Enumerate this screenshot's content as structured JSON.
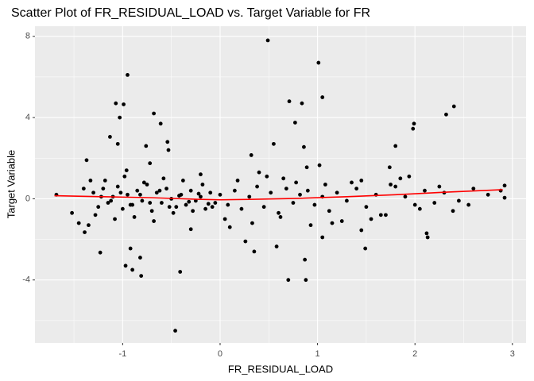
{
  "chart_data": {
    "type": "scatter",
    "title": "Scatter Plot of FR_RESIDUAL_LOAD vs. Target Variable for FR",
    "x_label": "FR_RESIDUAL_LOAD",
    "y_label": "Target Variable",
    "xlim": [
      -1.9,
      3.14
    ],
    "ylim": [
      -7.1,
      8.5
    ],
    "xticks": [
      -1,
      0,
      1,
      2,
      3
    ],
    "yticks": [
      -4,
      0,
      4,
      8
    ],
    "xminor_ticks": [
      -1.5,
      -0.5,
      0.5,
      1.5,
      2.5
    ],
    "yminor_ticks": [
      -6,
      -2,
      2,
      6
    ],
    "grid": true,
    "color": "#000000",
    "x": [
      -0.95,
      -1.07,
      -0.99,
      -1.03,
      -0.68,
      -0.61,
      -1.13,
      -1.05,
      -0.54,
      -0.53,
      -1.37,
      -0.76,
      -0.72,
      -0.96,
      0.49,
      1.01,
      1.05,
      0.71,
      0.84,
      0.77,
      0.55,
      0.32,
      0.86,
      1.02,
      0.89,
      1.74,
      1.8,
      1.99,
      1.98,
      2.32,
      2.4,
      1.94,
      -1.23,
      -0.97,
      -0.9,
      -0.81,
      -0.92,
      -0.82,
      -0.41,
      -0.46,
      -1.39,
      0.26,
      0.35,
      0.58,
      0.7,
      0.88,
      0.87,
      1.05,
      1.49,
      2.12,
      2.13,
      1.45,
      2.39,
      2.55,
      2.88,
      2.92,
      2.92,
      -1.68,
      -1.52,
      -1.45,
      -1.3,
      -1.25,
      -1.2,
      -1.15,
      -1.1,
      -1.05,
      -1.0,
      -0.95,
      -0.9,
      -0.85,
      -0.8,
      -0.75,
      -0.7,
      -0.65,
      -0.6,
      -0.55,
      -0.5,
      -0.45,
      -0.4,
      -0.35,
      -0.3,
      -0.25,
      -0.2,
      -0.15,
      -0.1,
      -0.05,
      -1.28,
      -1.18,
      -1.08,
      -0.98,
      -0.88,
      -0.78,
      -0.68,
      -0.58,
      -0.48,
      -0.38,
      -0.28,
      -0.18,
      -0.08,
      -1.22,
      -1.12,
      -1.02,
      -0.92,
      -0.82,
      -0.72,
      -0.62,
      -0.52,
      -0.42,
      -0.32,
      -0.22,
      -0.12,
      0.0,
      0.08,
      0.15,
      0.22,
      0.3,
      0.38,
      0.45,
      0.52,
      0.6,
      0.68,
      0.75,
      0.82,
      0.9,
      0.97,
      1.05,
      1.12,
      1.2,
      1.3,
      1.4,
      1.5,
      1.6,
      1.7,
      1.8,
      1.9,
      2.0,
      2.1,
      2.2,
      2.3,
      2.45,
      2.6,
      2.75,
      0.05,
      0.18,
      0.33,
      0.48,
      0.62,
      0.78,
      0.93,
      1.08,
      1.25,
      1.45,
      1.65,
      1.85,
      2.05,
      2.25,
      -1.4,
      -1.35,
      -1.33,
      -0.3,
      -0.2,
      0.1,
      0.4,
      0.65,
      1.15,
      1.35,
      1.55,
      1.75
    ],
    "y": [
      6.1,
      4.7,
      4.65,
      4.0,
      4.2,
      3.7,
      3.05,
      2.7,
      2.8,
      2.4,
      1.9,
      2.6,
      1.75,
      1.4,
      7.8,
      6.7,
      5.0,
      4.8,
      4.7,
      3.75,
      2.7,
      2.15,
      2.55,
      1.65,
      1.55,
      1.55,
      2.6,
      3.7,
      3.45,
      4.15,
      4.55,
      1.1,
      -2.65,
      -3.3,
      -3.5,
      -3.8,
      -2.45,
      -2.9,
      -3.6,
      -6.5,
      -1.65,
      -2.1,
      -2.6,
      -2.35,
      -4.0,
      -4.0,
      -3.0,
      -1.9,
      -2.45,
      -1.7,
      -1.9,
      -1.55,
      -0.6,
      -0.3,
      0.4,
      0.65,
      0.05,
      0.2,
      -0.7,
      -1.2,
      0.3,
      -0.4,
      0.5,
      -0.2,
      0.1,
      0.6,
      -0.5,
      0.2,
      -0.3,
      0.4,
      -0.1,
      0.7,
      -0.6,
      0.3,
      -0.2,
      0.5,
      0.0,
      -0.4,
      0.2,
      -0.3,
      0.4,
      -0.1,
      0.1,
      -0.5,
      0.3,
      -0.2,
      -0.8,
      0.9,
      -1.0,
      1.1,
      -0.9,
      0.8,
      -1.1,
      1.0,
      -0.7,
      0.9,
      -0.6,
      0.7,
      -0.4,
      0.1,
      -0.1,
      0.3,
      -0.3,
      0.2,
      -0.2,
      0.4,
      -0.4,
      0.15,
      -0.15,
      0.25,
      -0.25,
      0.2,
      -0.3,
      0.4,
      -0.5,
      0.1,
      0.6,
      -0.4,
      0.3,
      -0.7,
      0.5,
      -0.2,
      0.2,
      0.4,
      -0.3,
      0.1,
      -0.6,
      0.3,
      -0.1,
      0.5,
      -0.4,
      0.2,
      -0.8,
      0.6,
      0.1,
      -0.3,
      0.4,
      -0.2,
      0.3,
      -0.1,
      0.5,
      0.2,
      -1.0,
      0.9,
      -1.2,
      1.1,
      -0.9,
      0.8,
      -1.3,
      0.7,
      -1.1,
      0.9,
      -0.8,
      1.0,
      -0.5,
      0.6,
      0.5,
      -1.3,
      0.9,
      -1.5,
      1.2,
      -1.4,
      1.3,
      1.0,
      -1.2,
      0.8,
      -1.0,
      0.7
    ],
    "trend": {
      "color": "#ff0000",
      "x": [
        -1.7,
        -1.2,
        -0.7,
        -0.2,
        0.0,
        0.3,
        0.8,
        1.3,
        1.8,
        2.3,
        2.9
      ],
      "y": [
        0.15,
        0.1,
        0.05,
        -0.03,
        -0.05,
        -0.03,
        0.02,
        0.1,
        0.2,
        0.32,
        0.45
      ]
    }
  }
}
